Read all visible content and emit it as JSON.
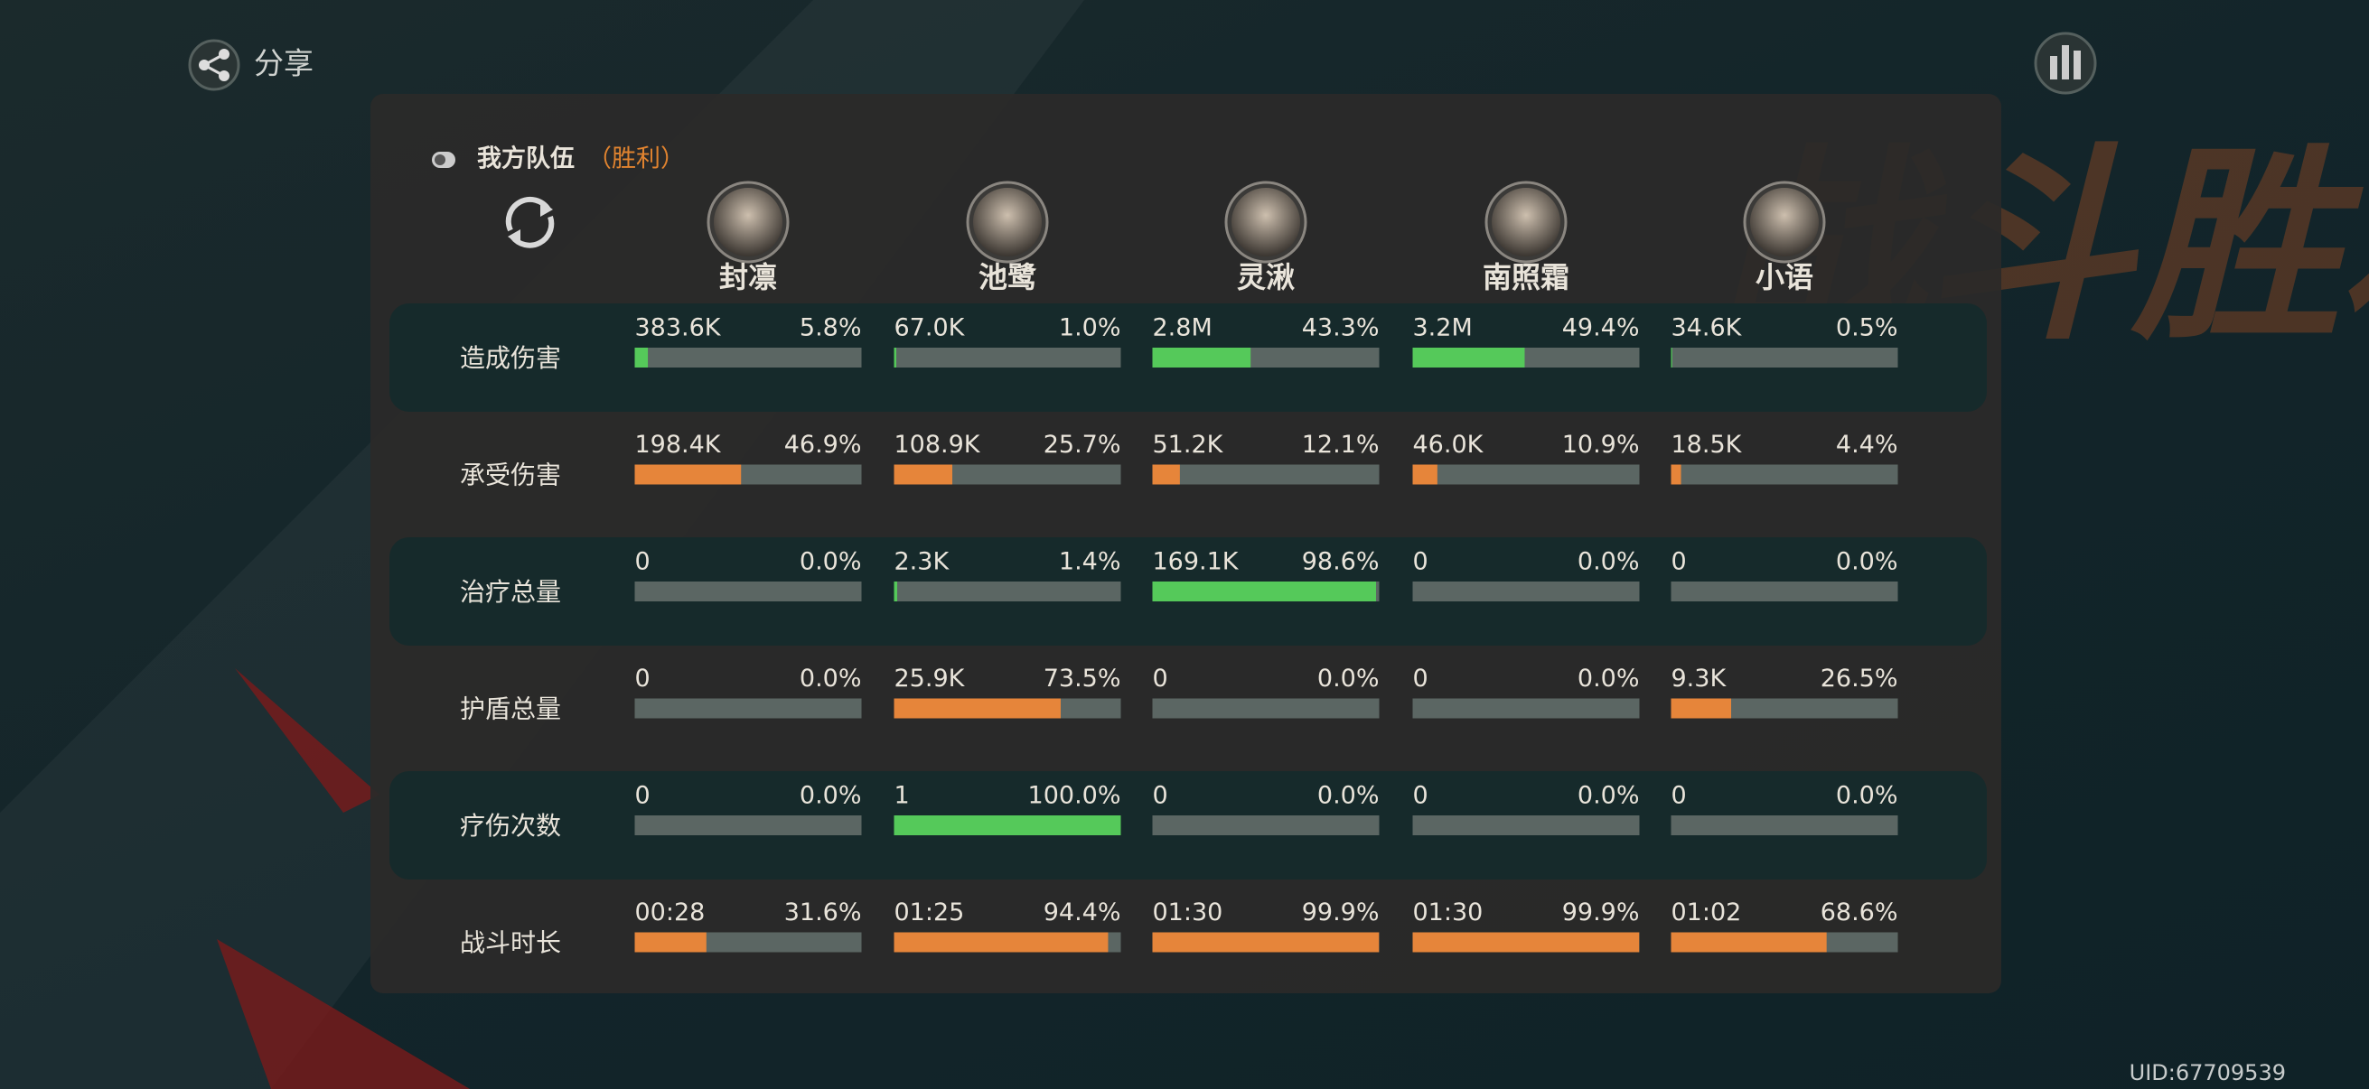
{
  "header": {
    "share": "分享",
    "uid": "UID:67709539",
    "banner": "战斗胜利"
  },
  "team": {
    "label": "我方队伍",
    "result": "（胜利）"
  },
  "characters": [
    "封凛",
    "池鹭",
    "灵湫",
    "南照霜",
    "小语"
  ],
  "bar_range": [
    0,
    100
  ],
  "bar_track_color": "#5b6663",
  "rows": [
    {
      "label": "造成伤害",
      "bar_color": "#55c95a",
      "cells": [
        {
          "amount": "383.6K",
          "percent": 5.8,
          "percent_label": "5.8%"
        },
        {
          "amount": "67.0K",
          "percent": 1.0,
          "percent_label": "1.0%"
        },
        {
          "amount": "2.8M",
          "percent": 43.3,
          "percent_label": "43.3%"
        },
        {
          "amount": "3.2M",
          "percent": 49.4,
          "percent_label": "49.4%"
        },
        {
          "amount": "34.6K",
          "percent": 0.5,
          "percent_label": "0.5%"
        }
      ]
    },
    {
      "label": "承受伤害",
      "bar_color": "#e6853a",
      "cells": [
        {
          "amount": "198.4K",
          "percent": 46.9,
          "percent_label": "46.9%"
        },
        {
          "amount": "108.9K",
          "percent": 25.7,
          "percent_label": "25.7%"
        },
        {
          "amount": "51.2K",
          "percent": 12.1,
          "percent_label": "12.1%"
        },
        {
          "amount": "46.0K",
          "percent": 10.9,
          "percent_label": "10.9%"
        },
        {
          "amount": "18.5K",
          "percent": 4.4,
          "percent_label": "4.4%"
        }
      ]
    },
    {
      "label": "治疗总量",
      "bar_color": "#55c95a",
      "cells": [
        {
          "amount": "0",
          "percent": 0.0,
          "percent_label": "0.0%"
        },
        {
          "amount": "2.3K",
          "percent": 1.4,
          "percent_label": "1.4%"
        },
        {
          "amount": "169.1K",
          "percent": 98.6,
          "percent_label": "98.6%"
        },
        {
          "amount": "0",
          "percent": 0.0,
          "percent_label": "0.0%"
        },
        {
          "amount": "0",
          "percent": 0.0,
          "percent_label": "0.0%"
        }
      ]
    },
    {
      "label": "护盾总量",
      "bar_color": "#e6853a",
      "cells": [
        {
          "amount": "0",
          "percent": 0.0,
          "percent_label": "0.0%"
        },
        {
          "amount": "25.9K",
          "percent": 73.5,
          "percent_label": "73.5%"
        },
        {
          "amount": "0",
          "percent": 0.0,
          "percent_label": "0.0%"
        },
        {
          "amount": "0",
          "percent": 0.0,
          "percent_label": "0.0%"
        },
        {
          "amount": "9.3K",
          "percent": 26.5,
          "percent_label": "26.5%"
        }
      ]
    },
    {
      "label": "疗伤次数",
      "bar_color": "#55c95a",
      "cells": [
        {
          "amount": "0",
          "percent": 0.0,
          "percent_label": "0.0%"
        },
        {
          "amount": "1",
          "percent": 100.0,
          "percent_label": "100.0%"
        },
        {
          "amount": "0",
          "percent": 0.0,
          "percent_label": "0.0%"
        },
        {
          "amount": "0",
          "percent": 0.0,
          "percent_label": "0.0%"
        },
        {
          "amount": "0",
          "percent": 0.0,
          "percent_label": "0.0%"
        }
      ]
    },
    {
      "label": "战斗时长",
      "bar_color": "#e6853a",
      "cells": [
        {
          "amount": "00:28",
          "percent": 31.6,
          "percent_label": "31.6%"
        },
        {
          "amount": "01:25",
          "percent": 94.4,
          "percent_label": "94.4%"
        },
        {
          "amount": "01:30",
          "percent": 99.9,
          "percent_label": "99.9%"
        },
        {
          "amount": "01:30",
          "percent": 99.9,
          "percent_label": "99.9%"
        },
        {
          "amount": "01:02",
          "percent": 68.6,
          "percent_label": "68.6%"
        }
      ]
    }
  ]
}
